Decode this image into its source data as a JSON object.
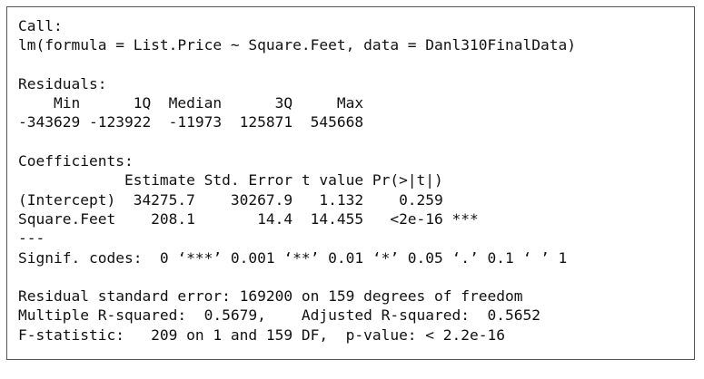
{
  "sections": [
    {
      "lines": [
        "Call:",
        "lm(formula = List.Price ~ Square.Feet, data = Danl310FinalData)"
      ]
    },
    {
      "lines": [
        "Residuals:",
        "    Min      1Q  Median      3Q     Max",
        "-343629 -123922  -11973  125871  545668"
      ]
    },
    {
      "lines": [
        "Coefficients:",
        "            Estimate Std. Error t value Pr(>|t|)",
        "(Intercept)  34275.7    30267.9   1.132    0.259",
        "Square.Feet    208.1       14.4  14.455   <2e-16 ***",
        "---",
        "Signif. codes:  0 ‘***’ 0.001 ‘**’ 0.01 ‘*’ 0.05 ‘.’ 0.1 ‘ ’ 1"
      ]
    },
    {
      "lines": [
        "Residual standard error: 169200 on 159 degrees of freedom",
        "Multiple R-squared:  0.5679,    Adjusted R-squared:  0.5652",
        "F-statistic:   209 on 1 and 159 DF,  p-value: < 2.2e-16"
      ]
    }
  ]
}
